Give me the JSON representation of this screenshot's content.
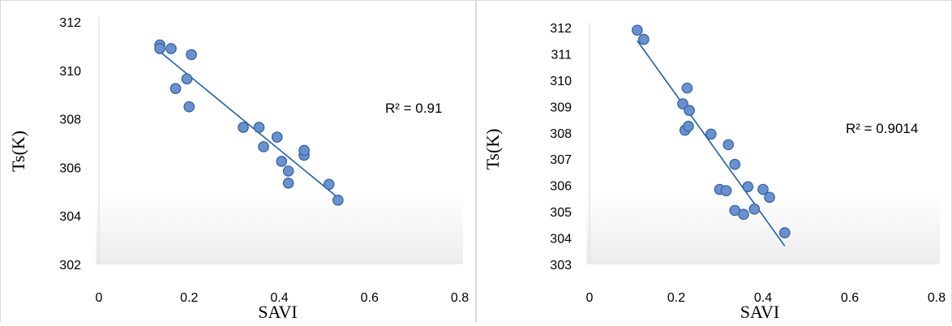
{
  "chart_data": [
    {
      "type": "scatter",
      "xlabel": "SAVI",
      "ylabel": "Ts(K)",
      "xlim": [
        0,
        0.8
      ],
      "ylim": [
        302,
        312
      ],
      "xticks": [
        "0",
        "0.2",
        "0.4",
        "0.6",
        "0.8"
      ],
      "yticks": [
        "302",
        "304",
        "306",
        "308",
        "310",
        "312"
      ],
      "grid": false,
      "trendline": {
        "type": "linear",
        "x0": 0.13,
        "y0": 310.85,
        "x1": 0.53,
        "y1": 304.75
      },
      "annotation": "R² = 0.91",
      "marker_color": "#6a91cf",
      "line_color": "#1f5fa8",
      "series": [
        {
          "points": [
            [
              0.135,
              311.05
            ],
            [
              0.135,
              310.9
            ],
            [
              0.16,
              310.9
            ],
            [
              0.205,
              310.65
            ],
            [
              0.17,
              309.25
            ],
            [
              0.195,
              309.65
            ],
            [
              0.2,
              308.5
            ],
            [
              0.32,
              307.65
            ],
            [
              0.355,
              307.65
            ],
            [
              0.365,
              306.85
            ],
            [
              0.395,
              307.25
            ],
            [
              0.405,
              306.25
            ],
            [
              0.42,
              305.85
            ],
            [
              0.42,
              305.35
            ],
            [
              0.455,
              306.5
            ],
            [
              0.455,
              306.7
            ],
            [
              0.51,
              305.3
            ],
            [
              0.53,
              304.65
            ]
          ]
        }
      ]
    },
    {
      "type": "scatter",
      "xlabel": "SAVI",
      "ylabel": "Ts(K)",
      "xlim": [
        0,
        0.8
      ],
      "ylim": [
        303,
        312
      ],
      "xticks": [
        "0",
        "0.2",
        "0.4",
        "0.6",
        "0.8"
      ],
      "yticks": [
        "303",
        "304",
        "305",
        "306",
        "307",
        "308",
        "309",
        "310",
        "311",
        "312"
      ],
      "grid": false,
      "trendline": {
        "type": "linear",
        "x0": 0.11,
        "y0": 311.5,
        "x1": 0.45,
        "y1": 303.7
      },
      "annotation": "R² = 0.9014",
      "marker_color": "#6a91cf",
      "line_color": "#1f5fa8",
      "series": [
        {
          "points": [
            [
              0.11,
              311.9
            ],
            [
              0.125,
              311.55
            ],
            [
              0.225,
              309.7
            ],
            [
              0.215,
              309.1
            ],
            [
              0.23,
              308.85
            ],
            [
              0.22,
              308.1
            ],
            [
              0.228,
              308.25
            ],
            [
              0.28,
              307.95
            ],
            [
              0.32,
              307.55
            ],
            [
              0.335,
              306.8
            ],
            [
              0.3,
              305.85
            ],
            [
              0.315,
              305.8
            ],
            [
              0.365,
              305.95
            ],
            [
              0.4,
              305.85
            ],
            [
              0.415,
              305.55
            ],
            [
              0.335,
              305.05
            ],
            [
              0.355,
              304.9
            ],
            [
              0.38,
              305.1
            ],
            [
              0.45,
              304.2
            ]
          ]
        }
      ]
    }
  ]
}
